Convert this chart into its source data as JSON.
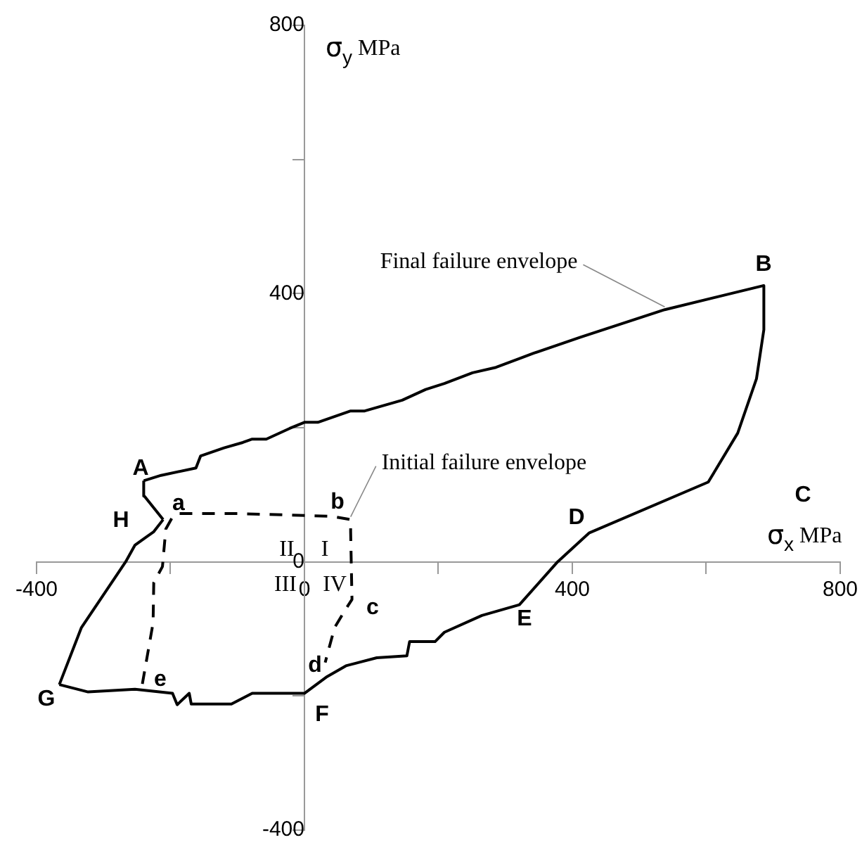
{
  "chart_data": {
    "type": "line",
    "xlabel": "σ$_{x}$ MPa",
    "ylabel": "σ$_{y}$ MPa",
    "xlim": [
      -400,
      800
    ],
    "ylim": [
      -400,
      800
    ],
    "xticks": [
      -400,
      {
        "value": -200,
        "label": null
      },
      0,
      {
        "value": 200,
        "label": null
      },
      400,
      {
        "value": 600,
        "label": null
      },
      800
    ],
    "yticks": [
      -400,
      {
        "value": -200,
        "label": null
      },
      0,
      {
        "value": 200,
        "label": null
      },
      400,
      {
        "value": 600,
        "label": null
      },
      800
    ],
    "grid": false,
    "legend": false,
    "marker": "none",
    "series": [
      {
        "name": "Final failure envelope",
        "color": "#000000",
        "line_style": "solid",
        "x": [
          -240,
          -214,
          -162,
          -155,
          -120,
          -92,
          -78,
          -57,
          -22,
          0,
          20,
          69,
          90,
          146,
          181,
          209,
          251,
          286,
          342,
          412,
          538,
          686
        ],
        "values": [
          121,
          129,
          140,
          158,
          170,
          178,
          183,
          183,
          199,
          208,
          208,
          225,
          225,
          241,
          257,
          266,
          282,
          290,
          311,
          335,
          376,
          412
        ]
      },
      {
        "color": "#000000",
        "line_style": "solid",
        "x": [
          686,
          686,
          675,
          647,
          603,
          425,
          378,
          321,
          265,
          209,
          195,
          157,
          153,
          108,
          62,
          34,
          0,
          -78,
          -109,
          -169,
          -172,
          -190,
          -197,
          -253,
          -323,
          -366
        ],
        "values": [
          412,
          346,
          273,
          192,
          119,
          43,
          0,
          -64,
          -80,
          -105,
          -119,
          -119,
          -140,
          -143,
          -155,
          -171,
          -196,
          -196,
          -212,
          -212,
          -196,
          -213,
          -196,
          -190,
          -194,
          -183
        ]
      },
      {
        "color": "#000000",
        "line_style": "solid",
        "x": [
          -366,
          -333,
          -267,
          -253,
          -225,
          -211
        ],
        "values": [
          -183,
          -98,
          0,
          25,
          45,
          63
        ]
      },
      {
        "color": "#000000",
        "line_style": "solid",
        "x": [
          -211,
          -239,
          -240
        ],
        "values": [
          63,
          98,
          121
        ]
      },
      {
        "name": "Initial failure envelope",
        "color": "#000000",
        "line_style": "dashed",
        "x": [
          -242,
          -226,
          -225,
          -212,
          -207,
          -198,
          -190,
          -99,
          40,
          69,
          69,
          71,
          62,
          45,
          31
        ],
        "values": [
          -182,
          -91,
          -31,
          -7,
          49,
          65,
          72,
          72,
          68,
          63,
          45,
          -56,
          -70,
          -98,
          -150
        ]
      }
    ],
    "annotations": [
      "A",
      "B",
      "C",
      "D",
      "E",
      "F",
      "G",
      "H",
      "a",
      "b",
      "c",
      "d",
      "e",
      "I",
      "II",
      "III",
      "IV"
    ]
  }
}
